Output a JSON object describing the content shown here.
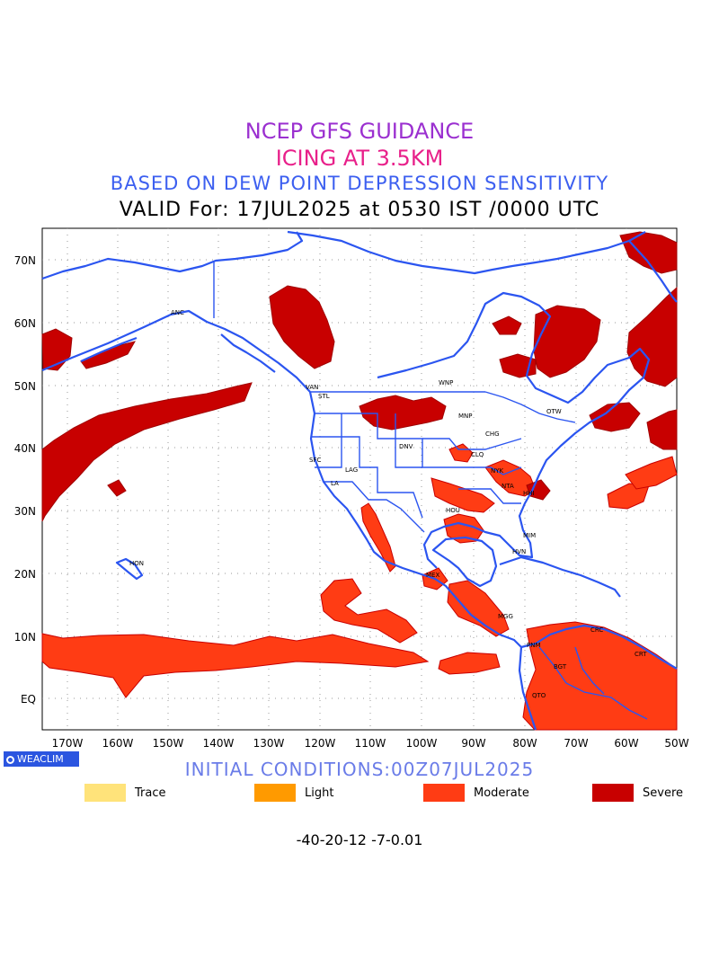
{
  "header": {
    "title": "NCEP GFS GUIDANCE",
    "subtitle": "ICING AT 3.5KM",
    "method": "BASED ON DEW POINT DEPRESSION SENSITIVITY",
    "valid": "VALID For: 17JUL2025 at 0530 IST /0000 UTC"
  },
  "axes": {
    "lat_labels": [
      "70N",
      "60N",
      "50N",
      "40N",
      "30N",
      "20N",
      "10N",
      "EQ"
    ],
    "lon_labels": [
      "170W",
      "160W",
      "150W",
      "140W",
      "130W",
      "120W",
      "110W",
      "100W",
      "90W",
      "80W",
      "70W",
      "60W",
      "50W"
    ]
  },
  "cities": [
    "ANC",
    "VAN",
    "STL",
    "WNP",
    "MNP",
    "OTW",
    "CHG",
    "DNV",
    "CLQ",
    "NYK",
    "SFC",
    "LAG",
    "LA",
    "HOU",
    "NTA",
    "HHI",
    "MIM",
    "HVN",
    "HON",
    "MEX",
    "MGG",
    "CRC",
    "CRT",
    "BGT",
    "PNM",
    "QTO"
  ],
  "footer": {
    "logo": "WEACLIM",
    "initial": "INITIAL CONDITIONS:00Z07JUL2025"
  },
  "legend": [
    {
      "label": "Trace",
      "color": "#ffe37a"
    },
    {
      "label": "Light",
      "color": "#ff9a00"
    },
    {
      "label": "Moderate",
      "color": "#ff3c14"
    },
    {
      "label": "Severe",
      "color": "#c80000"
    }
  ],
  "colorbar": {
    "ticks": "-40-20-12 -7-0.01",
    "colors": [
      "#ffe37a",
      "#ffaa2a",
      "#ff5a1a",
      "#e8200a",
      "#b80000"
    ]
  }
}
